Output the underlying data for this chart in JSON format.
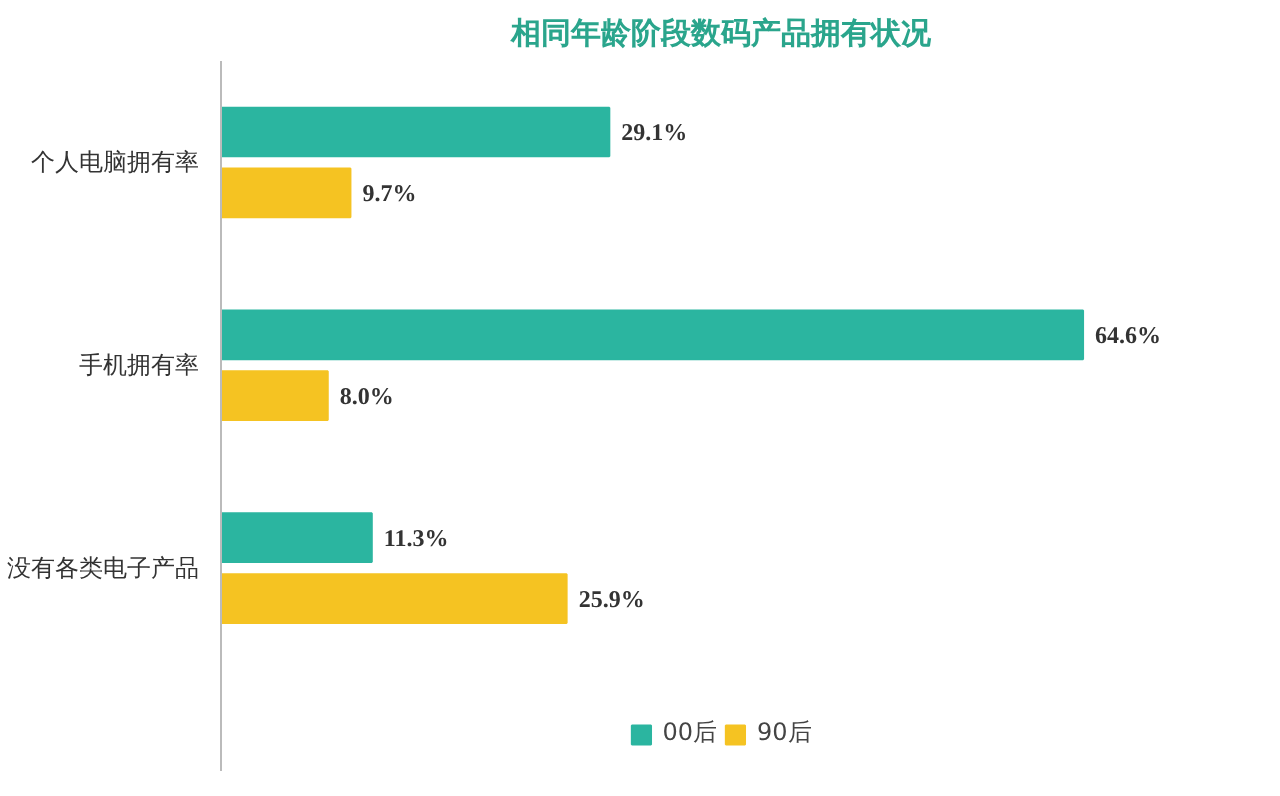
{
  "chart_data": {
    "type": "bar",
    "orientation": "horizontal",
    "title": "相同年龄阶段数码产品拥有状况",
    "categories": [
      "个人电脑拥有率",
      "手机拥有率",
      "没有各类电子产品"
    ],
    "series": [
      {
        "name": "00后",
        "color": "#2bb5a0",
        "values": [
          29.1,
          64.6,
          11.3
        ],
        "value_labels": [
          "29.1%",
          "64.6%",
          "11.3%"
        ]
      },
      {
        "name": "90后",
        "color": "#f5c322",
        "values": [
          9.7,
          8.0,
          25.9
        ],
        "value_labels": [
          "9.7%",
          "8.0%",
          "25.9%"
        ]
      }
    ],
    "legend": "bottom",
    "grid": false
  }
}
